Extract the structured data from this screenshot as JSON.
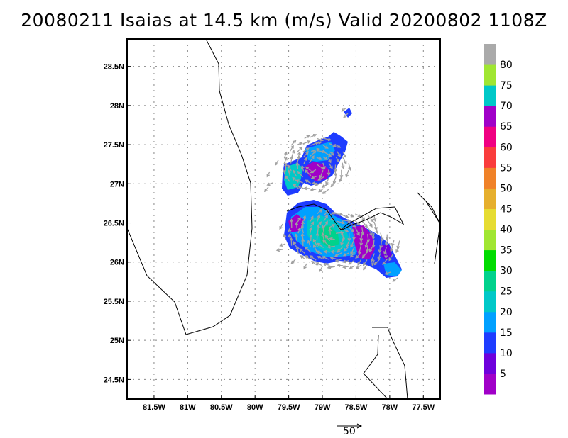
{
  "title": "20080211 Isaias at 14.5 km (m/s) Valid 20200802 1108Z",
  "map": {
    "lon_range": [
      -81.9,
      -77.25
    ],
    "lat_range": [
      24.25,
      28.85
    ],
    "lat_ticks": [
      {
        "value": 28.5,
        "label": "28.5N"
      },
      {
        "value": 28.0,
        "label": "28N"
      },
      {
        "value": 27.5,
        "label": "27.5N"
      },
      {
        "value": 27.0,
        "label": "27N"
      },
      {
        "value": 26.5,
        "label": "26.5N"
      },
      {
        "value": 26.0,
        "label": "26N"
      },
      {
        "value": 25.5,
        "label": "25.5N"
      },
      {
        "value": 25.0,
        "label": "25N"
      },
      {
        "value": 24.5,
        "label": "24.5N"
      }
    ],
    "lon_ticks": [
      {
        "value": -81.5,
        "label": "81.5W"
      },
      {
        "value": -81.0,
        "label": "81W"
      },
      {
        "value": -80.5,
        "label": "80.5W"
      },
      {
        "value": -80.0,
        "label": "80W"
      },
      {
        "value": -79.5,
        "label": "79.5W"
      },
      {
        "value": -79.0,
        "label": "79W"
      },
      {
        "value": -78.5,
        "label": "78.5W"
      },
      {
        "value": -78.0,
        "label": "78W"
      },
      {
        "value": -77.5,
        "label": "77.5W"
      }
    ]
  },
  "colorbar": {
    "labels": [
      "5",
      "10",
      "15",
      "20",
      "25",
      "30",
      "35",
      "40",
      "45",
      "50",
      "55",
      "60",
      "65",
      "70",
      "75",
      "80"
    ],
    "colors": [
      "#a000c8",
      "#6e00dc",
      "#1e3cff",
      "#00a0ff",
      "#00c8c8",
      "#00d28c",
      "#00dc00",
      "#a0e632",
      "#e6dc32",
      "#e6af2d",
      "#f08228",
      "#fa3c3c",
      "#f00082",
      "#a000c8",
      "#00c8c8",
      "#a0e632",
      "#aaaaaa"
    ]
  },
  "reference_vector": {
    "label": "50"
  },
  "colors": {
    "arrow": "#a0a0a0",
    "coast": "#000000",
    "grid": "#888888"
  }
}
